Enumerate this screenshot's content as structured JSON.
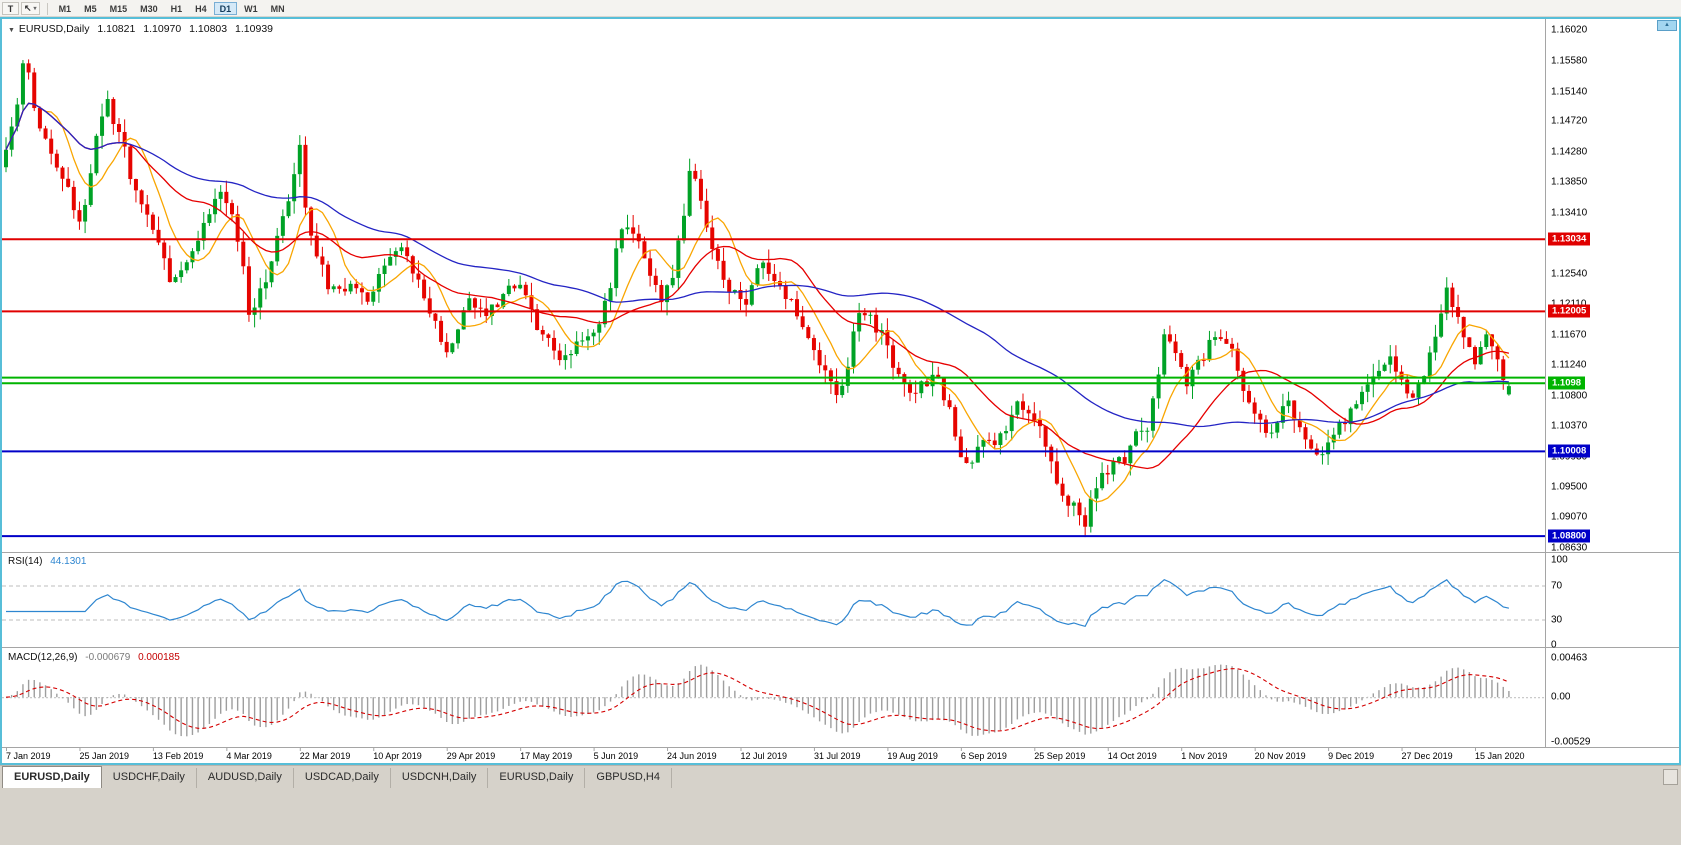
{
  "icons": {
    "collapse": "▼",
    "cursor_tool": "↖",
    "caret": "▾",
    "scroll_up": "▲"
  },
  "toolbar": {
    "text_tool": "T",
    "timeframes": [
      "M1",
      "M5",
      "M15",
      "M30",
      "H1",
      "H4",
      "D1",
      "W1",
      "MN"
    ],
    "active_timeframe": "D1"
  },
  "chart": {
    "symbol": "EURUSD,Daily",
    "open": "1.10821",
    "high": "1.10970",
    "low": "1.10803",
    "close": "1.10939"
  },
  "tabs": {
    "items": [
      "EURUSD,Daily",
      "USDCHF,Daily",
      "AUDUSD,Daily",
      "USDCAD,Daily",
      "USDCNH,Daily",
      "EURUSD,Daily",
      "GBPUSD,H4"
    ],
    "active_index": 0
  },
  "chart_data": {
    "type": "candlestick",
    "symbol": "EURUSD",
    "timeframe": "Daily",
    "bars": 267,
    "bars_per_date_label": 13,
    "candle_colors": {
      "up": "#00a226",
      "down": "#e60400"
    },
    "price_axis": {
      "ticks": [
        "1.16020",
        "1.15580",
        "1.15140",
        "1.14720",
        "1.14280",
        "1.13850",
        "1.13410",
        "1.12980",
        "1.12540",
        "1.12110",
        "1.11670",
        "1.11240",
        "1.10800",
        "1.10370",
        "1.09930",
        "1.09500",
        "1.09070",
        "1.08630"
      ]
    },
    "date_axis": {
      "labels": [
        "7 Jan 2019",
        "25 Jan 2019",
        "13 Feb 2019",
        "4 Mar 2019",
        "22 Mar 2019",
        "10 Apr 2019",
        "29 Apr 2019",
        "17 May 2019",
        "5 Jun 2019",
        "24 Jun 2019",
        "12 Jul 2019",
        "31 Jul 2019",
        "19 Aug 2019",
        "6 Sep 2019",
        "25 Sep 2019",
        "14 Oct 2019",
        "1 Nov 2019",
        "20 Nov 2019",
        "9 Dec 2019",
        "27 Dec 2019",
        "15 Jan 2020"
      ]
    },
    "hlines": [
      {
        "price": 1.13034,
        "badge": "1.13034",
        "color": "#e00000",
        "width": 2
      },
      {
        "price": 1.12005,
        "badge": "1.12005",
        "color": "#e00000",
        "width": 2
      },
      {
        "price": 1.1106,
        "badge": "",
        "color": "#00b400",
        "width": 2
      },
      {
        "price": 1.1098,
        "badge": "1.1098",
        "color": "#00b400",
        "width": 2
      },
      {
        "price": 1.10008,
        "badge": "1.10008",
        "color": "#0000c8",
        "width": 2
      },
      {
        "price": 1.088,
        "badge": "1.08800",
        "color": "#0000c8",
        "width": 2
      }
    ],
    "moving_averages": [
      {
        "name": "fast",
        "period": 8,
        "color": "#f9a602"
      },
      {
        "name": "medium",
        "period": 21,
        "color": "#e60000"
      },
      {
        "name": "slow",
        "period": 55,
        "color": "#2424c4"
      }
    ],
    "panels": {
      "rsi": {
        "name": "RSI(14)",
        "value": "44.1301",
        "period": 14,
        "color": "#2e86d0",
        "levels": [
          70,
          30
        ],
        "ticks": [
          {
            "value": 100,
            "label": "100"
          },
          {
            "value": 70,
            "label": "70"
          },
          {
            "value": 30,
            "label": "30"
          },
          {
            "value": 0,
            "label": "0"
          }
        ]
      },
      "macd": {
        "name": "MACD(12,26,9)",
        "main_value": "-0.000679",
        "signal_value": "0.000185",
        "fast": 12,
        "slow": 26,
        "signal": 9,
        "hist_color": "#9e9e9e",
        "signal_color": "#d40000",
        "ticks": [
          {
            "value": 0.00463,
            "label": "0.00463"
          },
          {
            "value": 0,
            "label": "0.00"
          },
          {
            "value": -0.00529,
            "label": "-0.00529"
          }
        ]
      }
    },
    "last_ohlc": {
      "open": 1.10821,
      "high": 1.1097,
      "low": 1.10803,
      "close": 1.10939
    },
    "price_waypoints": [
      [
        0,
        1.1435
      ],
      [
        2,
        1.1495
      ],
      [
        3,
        1.155
      ],
      [
        4,
        1.1535
      ],
      [
        6,
        1.146
      ],
      [
        9,
        1.1405
      ],
      [
        11,
        1.138
      ],
      [
        13,
        1.1318
      ],
      [
        15,
        1.14
      ],
      [
        17,
        1.148
      ],
      [
        18,
        1.15
      ],
      [
        20,
        1.1455
      ],
      [
        23,
        1.137
      ],
      [
        26,
        1.132
      ],
      [
        29,
        1.1248
      ],
      [
        32,
        1.127
      ],
      [
        35,
        1.132
      ],
      [
        38,
        1.1368
      ],
      [
        40,
        1.133
      ],
      [
        42,
        1.126
      ],
      [
        43,
        1.1195
      ],
      [
        45,
        1.123
      ],
      [
        48,
        1.13
      ],
      [
        51,
        1.139
      ],
      [
        52,
        1.1438
      ],
      [
        53,
        1.136
      ],
      [
        54,
        1.1305
      ],
      [
        56,
        1.126
      ],
      [
        58,
        1.1228
      ],
      [
        61,
        1.124
      ],
      [
        64,
        1.1215
      ],
      [
        67,
        1.1268
      ],
      [
        70,
        1.129
      ],
      [
        72,
        1.1255
      ],
      [
        74,
        1.1225
      ],
      [
        76,
        1.1185
      ],
      [
        78,
        1.114
      ],
      [
        80,
        1.1175
      ],
      [
        82,
        1.1218
      ],
      [
        84,
        1.1195
      ],
      [
        86,
        1.121
      ],
      [
        89,
        1.1228
      ],
      [
        91,
        1.124
      ],
      [
        93,
        1.1195
      ],
      [
        95,
        1.1165
      ],
      [
        98,
        1.113
      ],
      [
        100,
        1.1145
      ],
      [
        103,
        1.1165
      ],
      [
        105,
        1.118
      ],
      [
        107,
        1.1245
      ],
      [
        109,
        1.133
      ],
      [
        111,
        1.131
      ],
      [
        113,
        1.1275
      ],
      [
        115,
        1.123
      ],
      [
        116,
        1.1208
      ],
      [
        118,
        1.1245
      ],
      [
        120,
        1.134
      ],
      [
        121,
        1.14
      ],
      [
        122,
        1.1385
      ],
      [
        124,
        1.133
      ],
      [
        125,
        1.1288
      ],
      [
        127,
        1.1245
      ],
      [
        129,
        1.1222
      ],
      [
        131,
        1.1212
      ],
      [
        133,
        1.1268
      ],
      [
        135,
        1.1252
      ],
      [
        137,
        1.1235
      ],
      [
        139,
        1.1222
      ],
      [
        141,
        1.1185
      ],
      [
        143,
        1.1142
      ],
      [
        145,
        1.112
      ],
      [
        147,
        1.108
      ],
      [
        149,
        1.1125
      ],
      [
        151,
        1.1198
      ],
      [
        153,
        1.1185
      ],
      [
        155,
        1.1172
      ],
      [
        157,
        1.113
      ],
      [
        159,
        1.1092
      ],
      [
        161,
        1.1088
      ],
      [
        163,
        1.1098
      ],
      [
        165,
        1.1102
      ],
      [
        167,
        1.1062
      ],
      [
        169,
        1.0995
      ],
      [
        171,
        1.0978
      ],
      [
        173,
        1.1015
      ],
      [
        175,
        1.1002
      ],
      [
        177,
        1.104
      ],
      [
        179,
        1.1068
      ],
      [
        181,
        1.1058
      ],
      [
        183,
        1.1035
      ],
      [
        185,
        1.0992
      ],
      [
        187,
        1.0942
      ],
      [
        189,
        1.092
      ],
      [
        191,
        1.0902
      ],
      [
        192,
        1.0935
      ],
      [
        194,
        1.0968
      ],
      [
        196,
        1.0982
      ],
      [
        198,
        1.0992
      ],
      [
        200,
        1.1025
      ],
      [
        202,
        1.1035
      ],
      [
        204,
        1.1115
      ],
      [
        205,
        1.1162
      ],
      [
        207,
        1.114
      ],
      [
        209,
        1.1092
      ],
      [
        211,
        1.1122
      ],
      [
        213,
        1.1152
      ],
      [
        215,
        1.116
      ],
      [
        217,
        1.1135
      ],
      [
        219,
        1.1088
      ],
      [
        221,
        1.1052
      ],
      [
        223,
        1.1022
      ],
      [
        225,
        1.1048
      ],
      [
        227,
        1.1068
      ],
      [
        229,
        1.1032
      ],
      [
        231,
        1.1008
      ],
      [
        233,
        1.099
      ],
      [
        235,
        1.1018
      ],
      [
        237,
        1.1048
      ],
      [
        239,
        1.1068
      ],
      [
        241,
        1.1095
      ],
      [
        243,
        1.1118
      ],
      [
        245,
        1.1138
      ],
      [
        247,
        1.1098
      ],
      [
        249,
        1.108
      ],
      [
        251,
        1.1108
      ],
      [
        253,
        1.1162
      ],
      [
        255,
        1.1228
      ],
      [
        256,
        1.121
      ],
      [
        258,
        1.116
      ],
      [
        260,
        1.1128
      ],
      [
        262,
        1.1158
      ],
      [
        264,
        1.1128
      ],
      [
        265,
        1.1108
      ],
      [
        266,
        1.1094
      ]
    ]
  }
}
